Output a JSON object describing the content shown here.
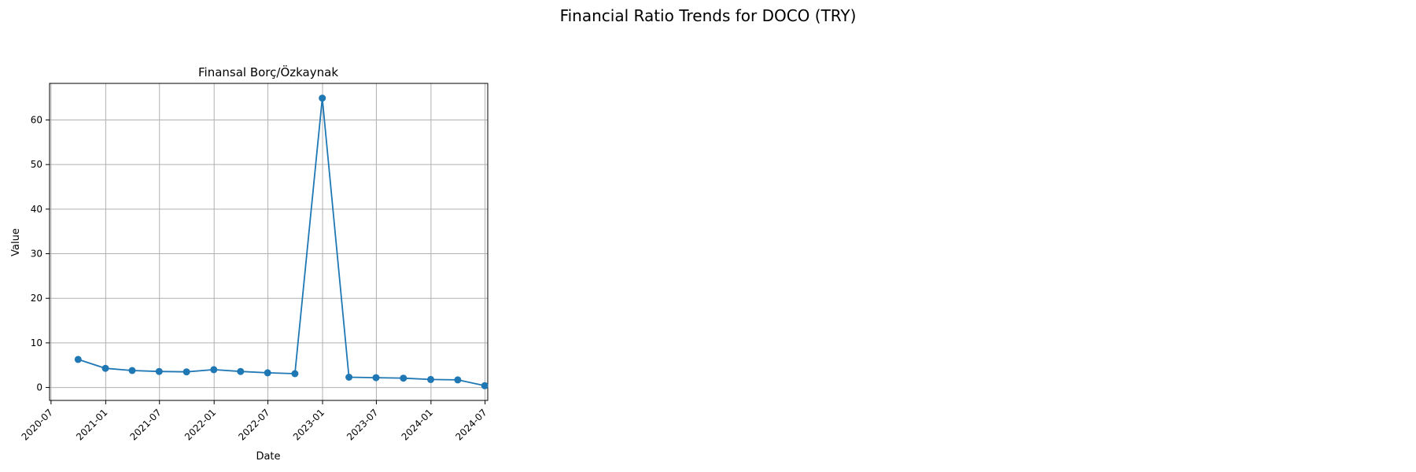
{
  "figure": {
    "title": "Financial Ratio Trends for DOCO (TRY)"
  },
  "chart_data": {
    "type": "line",
    "title": "Finansal Borç/Özkaynak",
    "xlabel": "Date",
    "ylabel": "Value",
    "x_tick_labels": [
      "2020-07",
      "2021-01",
      "2021-07",
      "2022-01",
      "2022-07",
      "2023-01",
      "2023-07",
      "2024-01",
      "2024-07"
    ],
    "y_ticks": [
      0,
      10,
      20,
      30,
      40,
      50,
      60
    ],
    "ylim": [
      -2.9,
      68.2
    ],
    "xlim": [
      "2020-06-26",
      "2024-07-10"
    ],
    "grid": true,
    "series": [
      {
        "color": "#1f77b4",
        "marker": "circle",
        "points": [
          {
            "x": "2020-09-30",
            "y": 6.3
          },
          {
            "x": "2020-12-31",
            "y": 4.3
          },
          {
            "x": "2021-03-31",
            "y": 3.8
          },
          {
            "x": "2021-06-30",
            "y": 3.6
          },
          {
            "x": "2021-09-30",
            "y": 3.5
          },
          {
            "x": "2021-12-31",
            "y": 4.0
          },
          {
            "x": "2022-03-31",
            "y": 3.6
          },
          {
            "x": "2022-06-30",
            "y": 3.3
          },
          {
            "x": "2022-09-30",
            "y": 3.1
          },
          {
            "x": "2022-12-31",
            "y": 64.9
          },
          {
            "x": "2023-03-31",
            "y": 2.3
          },
          {
            "x": "2023-06-30",
            "y": 2.2
          },
          {
            "x": "2023-09-30",
            "y": 2.1
          },
          {
            "x": "2023-12-31",
            "y": 1.8
          },
          {
            "x": "2024-03-31",
            "y": 1.7
          },
          {
            "x": "2024-06-30",
            "y": 0.4
          }
        ]
      }
    ]
  }
}
